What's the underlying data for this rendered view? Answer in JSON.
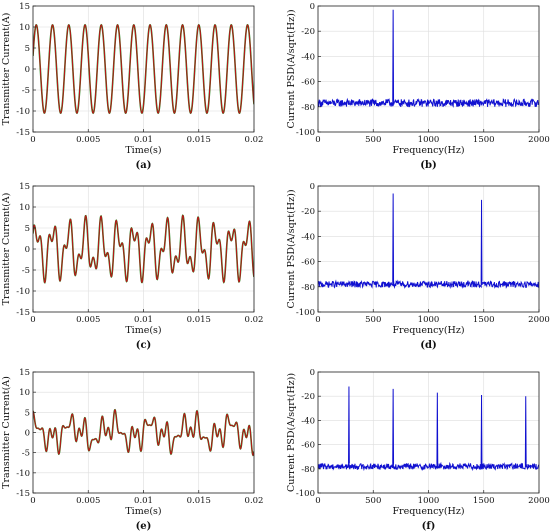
{
  "figure": {
    "background": "#ffffff"
  },
  "chart_data": [
    {
      "id": "a",
      "type": "line",
      "panel_label": "(a)",
      "xlabel": "Time(s)",
      "ylabel": "Transmitter Current(A)",
      "xlim": [
        0,
        0.02
      ],
      "ylim": [
        -15,
        15
      ],
      "xticks": [
        0,
        0.005,
        0.01,
        0.015,
        0.02
      ],
      "xtick_labels": [
        "0",
        "0.005",
        "0.01",
        "0.015",
        "0.02"
      ],
      "yticks": [
        -15,
        -10,
        -5,
        0,
        5,
        10,
        15
      ],
      "ytick_labels": [
        "-15",
        "-10",
        "-5",
        "0",
        "5",
        "10",
        "15"
      ],
      "grid": true,
      "series": [
        {
          "color": "#1a8a1a",
          "signal": {
            "offset": 0,
            "components": [
              {
                "freq_hz": 680,
                "amplitude": 10.5,
                "phase": 0.3
              }
            ]
          }
        },
        {
          "color": "#c0111a",
          "signal": {
            "offset": 0,
            "components": [
              {
                "freq_hz": 680,
                "amplitude": 10.5,
                "phase": 0.3
              }
            ]
          }
        }
      ]
    },
    {
      "id": "b",
      "type": "line",
      "panel_label": "(b)",
      "xlabel": "Frequency(Hz)",
      "ylabel": "Current PSD(A/sqrt(Hz))",
      "xlim": [
        0,
        2000
      ],
      "ylim": [
        -100,
        0
      ],
      "xticks": [
        0,
        500,
        1000,
        1500,
        2000
      ],
      "xtick_labels": [
        "0",
        "500",
        "1000",
        "1500",
        "2000"
      ],
      "yticks": [
        -100,
        -80,
        -60,
        -40,
        -20,
        0
      ],
      "ytick_labels": [
        "-100",
        "-80",
        "-60",
        "-40",
        "-20",
        "0"
      ],
      "grid": true,
      "series": [
        {
          "color": "#1010d0",
          "noise_floor_db": -77,
          "noise_spread_db": 3,
          "peaks": [
            {
              "freq_hz": 680,
              "level_db": -3
            }
          ]
        }
      ]
    },
    {
      "id": "c",
      "type": "line",
      "panel_label": "(c)",
      "xlabel": "Time(s)",
      "ylabel": "Transmitter Current(A)",
      "xlim": [
        0,
        0.02
      ],
      "ylim": [
        -15,
        15
      ],
      "xticks": [
        0,
        0.005,
        0.01,
        0.015,
        0.02
      ],
      "xtick_labels": [
        "0",
        "0.005",
        "0.01",
        "0.015",
        "0.02"
      ],
      "yticks": [
        -15,
        -10,
        -5,
        0,
        5,
        10,
        15
      ],
      "ytick_labels": [
        "-15",
        "-10",
        "-5",
        "0",
        "5",
        "10",
        "15"
      ],
      "grid": true,
      "series": [
        {
          "color": "#1a8a1a",
          "signal": {
            "offset": 0,
            "components": [
              {
                "freq_hz": 680,
                "amplitude": 5,
                "phase": 0.2
              },
              {
                "freq_hz": 1480,
                "amplitude": 3,
                "phase": 1.1
              }
            ]
          }
        },
        {
          "color": "#c0111a",
          "signal": {
            "offset": 0,
            "components": [
              {
                "freq_hz": 680,
                "amplitude": 5,
                "phase": 0.2
              },
              {
                "freq_hz": 1480,
                "amplitude": 3,
                "phase": 1.1
              }
            ]
          }
        }
      ]
    },
    {
      "id": "d",
      "type": "line",
      "panel_label": "(d)",
      "xlabel": "Frequency(Hz)",
      "ylabel": "Current PSD(A/sqrt(Hz))",
      "xlim": [
        0,
        2000
      ],
      "ylim": [
        -100,
        0
      ],
      "xticks": [
        0,
        500,
        1000,
        1500,
        2000
      ],
      "xtick_labels": [
        "0",
        "500",
        "1000",
        "1500",
        "2000"
      ],
      "yticks": [
        -100,
        -80,
        -60,
        -40,
        -20,
        0
      ],
      "ytick_labels": [
        "-100",
        "-80",
        "-60",
        "-40",
        "-20",
        "0"
      ],
      "grid": true,
      "series": [
        {
          "color": "#1010d0",
          "noise_floor_db": -78,
          "noise_spread_db": 2.5,
          "peaks": [
            {
              "freq_hz": 680,
              "level_db": -6
            },
            {
              "freq_hz": 1480,
              "level_db": -11
            }
          ]
        }
      ]
    },
    {
      "id": "e",
      "type": "line",
      "panel_label": "(e)",
      "xlabel": "Time(s)",
      "ylabel": "Transmitter Current(A)",
      "xlim": [
        0,
        0.02
      ],
      "ylim": [
        -15,
        15
      ],
      "xticks": [
        0,
        0.005,
        0.01,
        0.015,
        0.02
      ],
      "xtick_labels": [
        "0",
        "0.005",
        "0.01",
        "0.015",
        "0.02"
      ],
      "yticks": [
        -15,
        -10,
        -5,
        0,
        5,
        10,
        15
      ],
      "ytick_labels": [
        "-15",
        "-10",
        "-5",
        "0",
        "5",
        "10",
        "15"
      ],
      "grid": true,
      "series": [
        {
          "color": "#1a8a1a",
          "signal": {
            "offset": 0,
            "components": [
              {
                "freq_hz": 280,
                "amplitude": 1.8,
                "phase": 1.6
              },
              {
                "freq_hz": 680,
                "amplitude": 1.6,
                "phase": 0.4
              },
              {
                "freq_hz": 1080,
                "amplitude": 1.4,
                "phase": 2.0
              },
              {
                "freq_hz": 1480,
                "amplitude": 1.3,
                "phase": 0.9
              },
              {
                "freq_hz": 1880,
                "amplitude": 1.2,
                "phase": 2.6
              }
            ]
          }
        },
        {
          "color": "#c0111a",
          "signal": {
            "offset": 0,
            "components": [
              {
                "freq_hz": 280,
                "amplitude": 1.8,
                "phase": 1.6
              },
              {
                "freq_hz": 680,
                "amplitude": 1.6,
                "phase": 0.4
              },
              {
                "freq_hz": 1080,
                "amplitude": 1.4,
                "phase": 2.0
              },
              {
                "freq_hz": 1480,
                "amplitude": 1.3,
                "phase": 0.9
              },
              {
                "freq_hz": 1880,
                "amplitude": 1.2,
                "phase": 2.6
              }
            ]
          }
        }
      ]
    },
    {
      "id": "f",
      "type": "line",
      "panel_label": "(f)",
      "xlabel": "Frequency(Hz)",
      "ylabel": "Current PSD(A/sqrt(Hz))",
      "xlim": [
        0,
        2000
      ],
      "ylim": [
        -100,
        0
      ],
      "xticks": [
        0,
        500,
        1000,
        1500,
        2000
      ],
      "xtick_labels": [
        "0",
        "500",
        "1000",
        "1500",
        "2000"
      ],
      "yticks": [
        -100,
        -80,
        -60,
        -40,
        -20,
        0
      ],
      "ytick_labels": [
        "-100",
        "-80",
        "-60",
        "-40",
        "-20",
        "0"
      ],
      "grid": true,
      "series": [
        {
          "color": "#1010d0",
          "noise_floor_db": -78,
          "noise_spread_db": 2.5,
          "peaks": [
            {
              "freq_hz": 280,
              "level_db": -12
            },
            {
              "freq_hz": 680,
              "level_db": -14
            },
            {
              "freq_hz": 1080,
              "level_db": -17
            },
            {
              "freq_hz": 1480,
              "level_db": -19
            },
            {
              "freq_hz": 1880,
              "level_db": -20
            }
          ]
        }
      ]
    }
  ]
}
